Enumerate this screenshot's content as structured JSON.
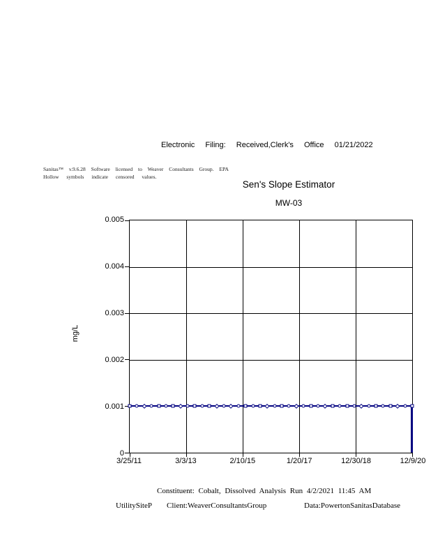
{
  "document": {
    "header_line": "Electronic Filing: Received,Clerk's Office 01/21/2022",
    "software_note_line1": "Sanitas™ v.9.6.28 Software licensed to Weaver Consultants Group. EPA",
    "software_note_line2": "Hollow symbols indicate censored values.",
    "footer": {
      "constituent_line": "Constituent: Cobalt, Dissolved Analysis Run 4/2/2021 11:45 AM",
      "site": "UtilitySiteP",
      "client": "Client:WeaverConsultantsGroup",
      "database": "Data:PowertonSanitasDatabase"
    }
  },
  "chart_data": {
    "type": "line",
    "title": "Sen's Slope Estimator",
    "subtitle": "MW-03",
    "xlabel": "",
    "ylabel": "mg/L",
    "ylim": [
      0,
      0.005
    ],
    "y_tick_labels": [
      "0.005",
      "0.004",
      "0.003",
      "0.002",
      "0.001",
      "0"
    ],
    "x_tick_labels": [
      "3/25/11",
      "3/3/13",
      "2/10/15",
      "1/20/17",
      "12/30/18",
      "12/9/20"
    ],
    "x_range": [
      "3/25/11",
      "12/9/20"
    ],
    "grid": true,
    "legend": "none",
    "series": [
      {
        "name": "Cobalt, Dissolved at MW-03",
        "color": "#000080",
        "censored_hollow_symbols": true,
        "constant_value": 0.001,
        "values": [
          0.001,
          0.001,
          0.001,
          0.001,
          0.001,
          0.001,
          0.001,
          0.001,
          0.001,
          0.001,
          0.001,
          0.001,
          0.001,
          0.001,
          0.001,
          0.001,
          0.001,
          0.001,
          0.001,
          0.001,
          0.001,
          0.001,
          0.001,
          0.001,
          0.001,
          0.001,
          0.001,
          0.001,
          0.001,
          0.001,
          0.001,
          0.001,
          0.001,
          0.001,
          0.001,
          0.001,
          0.001,
          0.001,
          0.001,
          0.001
        ],
        "marker_shapes": [
          "square",
          "circle",
          "diamond",
          "circle",
          "square",
          "circle",
          "square",
          "diamond",
          "circle",
          "square",
          "circle",
          "square",
          "diamond",
          "circle",
          "diamond",
          "circle",
          "square",
          "circle",
          "square",
          "diamond",
          "circle",
          "square",
          "circle",
          "diamond",
          "circle",
          "square",
          "circle",
          "diamond",
          "square",
          "circle",
          "square",
          "circle",
          "diamond",
          "circle",
          "square",
          "circle",
          "square",
          "diamond",
          "circle",
          "square"
        ],
        "end_drop": {
          "at_x": "12/9/20",
          "from": 0.001,
          "to": 0
        }
      }
    ]
  }
}
